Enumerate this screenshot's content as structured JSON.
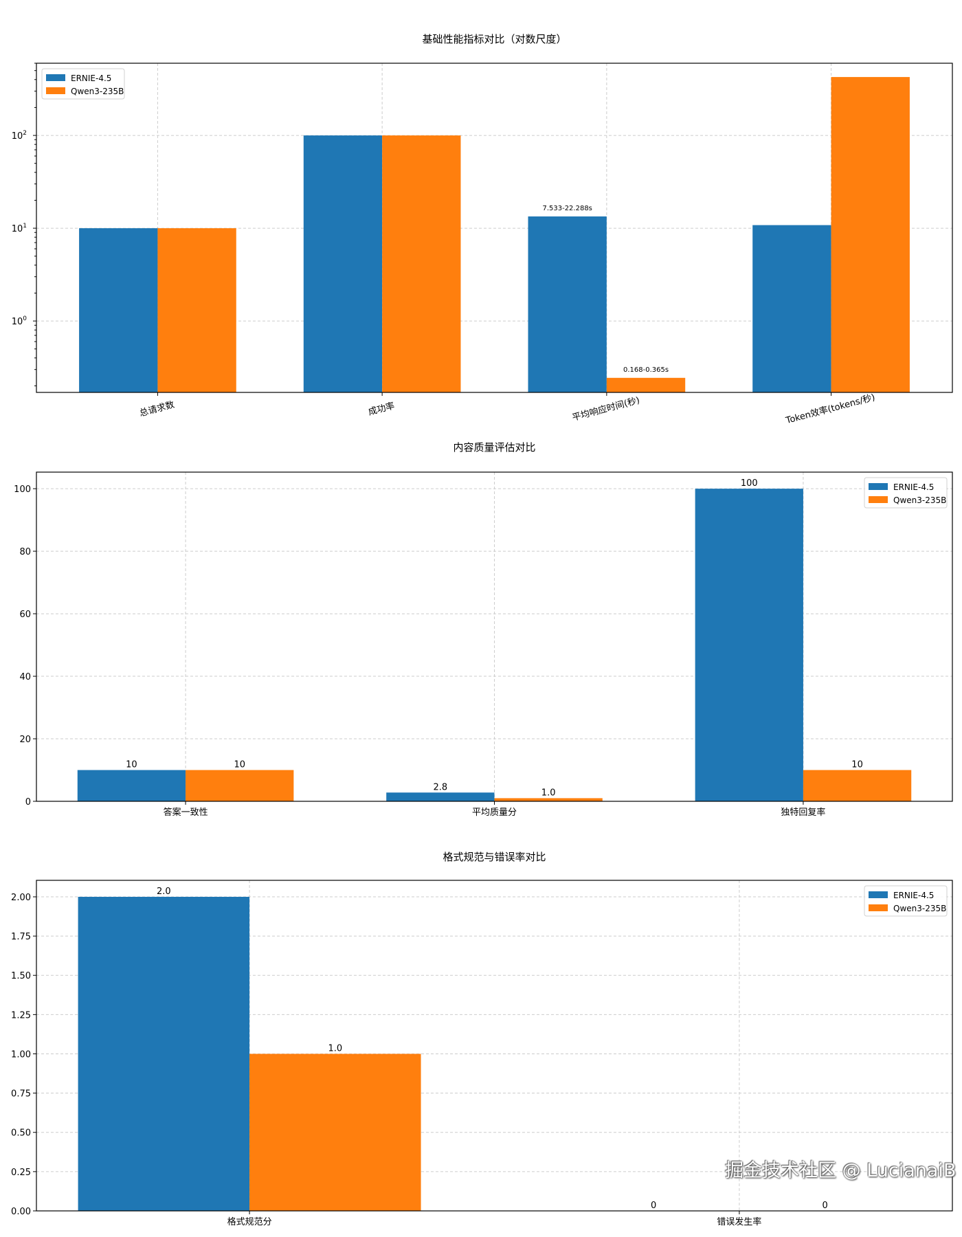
{
  "chart_data": [
    {
      "type": "bar",
      "title": "基础性能指标对比（对数尺度）",
      "xlabel": "",
      "ylabel": "",
      "yscale": "log",
      "ylim": [
        0.17,
        600
      ],
      "xlim": [
        -0.54,
        3.54
      ],
      "yticks": [
        1,
        10,
        100
      ],
      "ytick_labels": [
        [
          "10",
          "0"
        ],
        [
          "10",
          "1"
        ],
        [
          "10",
          "2"
        ]
      ],
      "grid": true,
      "legend_placement": "top-left",
      "tick_rotation": 15,
      "categories": [
        "总请求数",
        "成功率",
        "平均响应时间(秒)",
        "Token效率(tokens/秒)"
      ],
      "series": [
        {
          "name": "ERNIE-4.5",
          "color": "#1f77b4",
          "values": [
            10,
            100,
            13.4,
            10.8
          ],
          "labels": [
            "",
            "",
            "7.533-22.288s",
            ""
          ]
        },
        {
          "name": "Qwen3-235B",
          "color": "#ff7f0e",
          "values": [
            10,
            100,
            0.244,
            426
          ],
          "labels": [
            "",
            "",
            "0.168-0.365s",
            ""
          ]
        }
      ]
    },
    {
      "type": "bar",
      "title": "内容质量评估对比",
      "xlabel": "",
      "ylabel": "",
      "yscale": "linear",
      "ylim": [
        0,
        105.3
      ],
      "xlim": [
        -0.483,
        2.483
      ],
      "yticks": [
        0,
        20,
        40,
        60,
        80,
        100
      ],
      "ytick_labels": [
        "0",
        "20",
        "40",
        "60",
        "80",
        "100"
      ],
      "grid": true,
      "legend_placement": "top-right",
      "tick_rotation": 0,
      "categories": [
        "答案一致性",
        "平均质量分",
        "独特回复率"
      ],
      "series": [
        {
          "name": "ERNIE-4.5",
          "color": "#1f77b4",
          "values": [
            10,
            2.8,
            100
          ],
          "labels": [
            "10",
            "2.8",
            "100"
          ]
        },
        {
          "name": "Qwen3-235B",
          "color": "#ff7f0e",
          "values": [
            10,
            1.0,
            10
          ],
          "labels": [
            "10",
            "1.0",
            "10"
          ]
        }
      ]
    },
    {
      "type": "bar",
      "title": "格式规范与错误率对比",
      "xlabel": "",
      "ylabel": "",
      "yscale": "linear",
      "ylim": [
        0,
        2.105
      ],
      "xlim": [
        -0.435,
        1.435
      ],
      "yticks": [
        0,
        0.25,
        0.5,
        0.75,
        1.0,
        1.25,
        1.5,
        1.75,
        2.0
      ],
      "ytick_labels": [
        "0.00",
        "0.25",
        "0.50",
        "0.75",
        "1.00",
        "1.25",
        "1.50",
        "1.75",
        "2.00"
      ],
      "grid": true,
      "legend_placement": "top-right",
      "tick_rotation": 0,
      "categories": [
        "格式规范分",
        "错误发生率"
      ],
      "series": [
        {
          "name": "ERNIE-4.5",
          "color": "#1f77b4",
          "values": [
            2.0,
            0
          ],
          "labels": [
            "2.0",
            "0"
          ]
        },
        {
          "name": "Qwen3-235B",
          "color": "#ff7f0e",
          "values": [
            1.0,
            0
          ],
          "labels": [
            "1.0",
            "0"
          ]
        }
      ]
    }
  ],
  "watermark": "掘金技术社区 @ LucianaiB"
}
